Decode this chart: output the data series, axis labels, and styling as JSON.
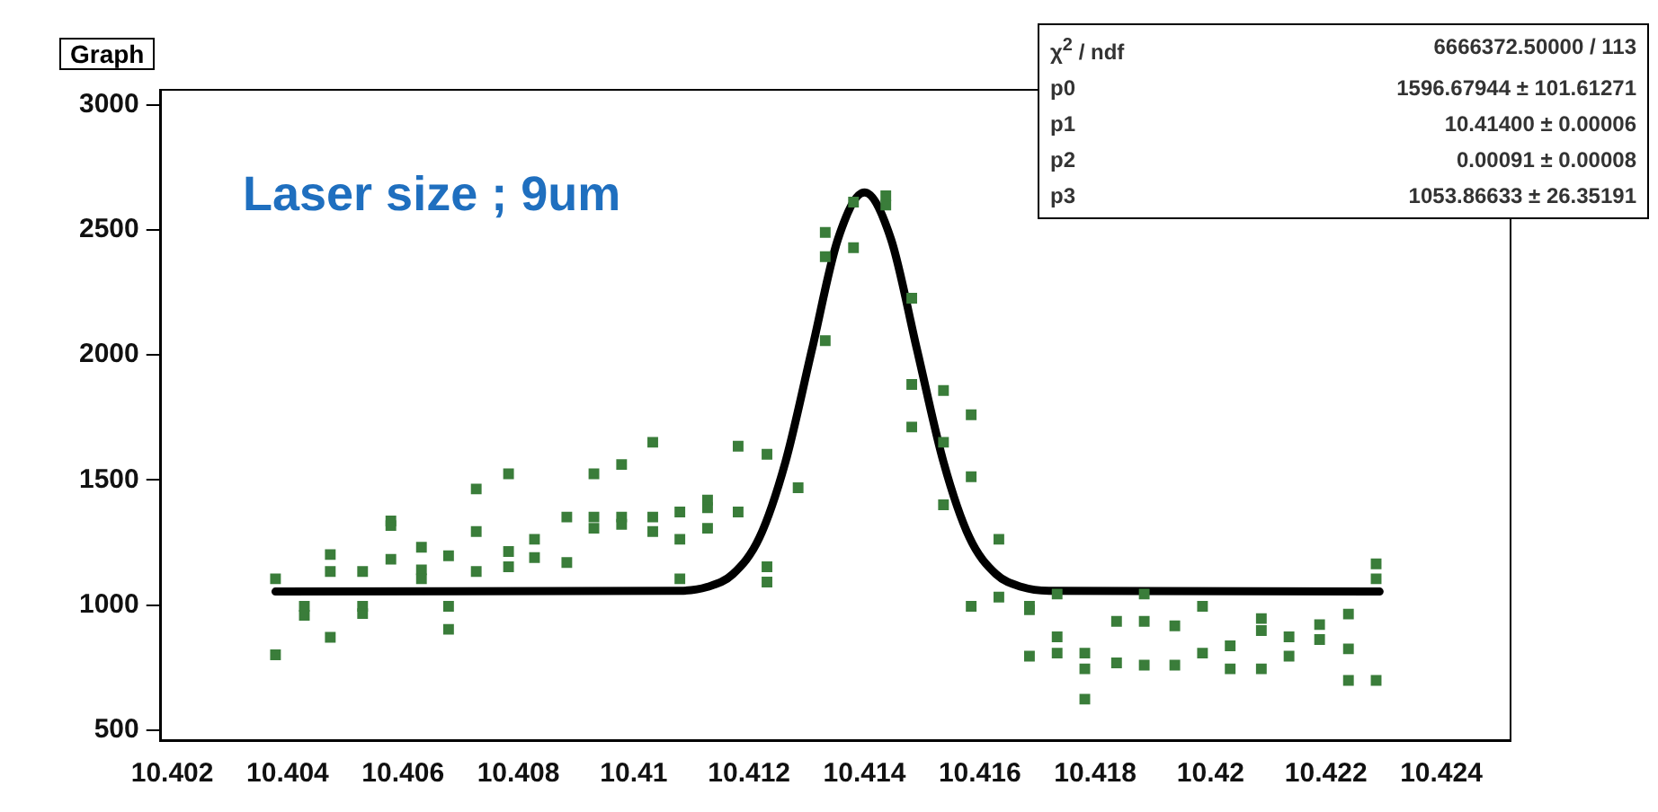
{
  "chart_data": {
    "type": "scatter",
    "title": "Graph",
    "marker": "square",
    "grid": false,
    "legend": false,
    "xlim": [
      10.4018,
      10.4252
    ],
    "ylim": [
      460,
      3060
    ],
    "xticks": [
      10.402,
      10.404,
      10.406,
      10.408,
      10.41,
      10.412,
      10.414,
      10.416,
      10.418,
      10.42,
      10.422,
      10.424
    ],
    "yticks": [
      500,
      1000,
      1500,
      2000,
      2500,
      3000
    ],
    "annotations": [
      "Laser size ; 9um",
      "χ$^{2}$ / ndf",
      "6666372.50000 / 113",
      "p0",
      "1596.67944 ± 101.61271",
      "p1",
      "10.41400 ± 0.00006",
      "p2",
      "0.00091 ± 0.00008",
      "p3",
      "1053.86633 ± 26.35191"
    ],
    "series": [
      {
        "color": "#3a7d3a",
        "x": [
          10.40379,
          10.40379,
          10.40429,
          10.40429,
          10.40474,
          10.40474,
          10.40474,
          10.4053,
          10.4053,
          10.4053,
          10.40579,
          10.40579,
          10.40579,
          10.40632,
          10.40632,
          10.40632,
          10.40679,
          10.40679,
          10.40679,
          10.40727,
          10.40727,
          10.40727,
          10.40783,
          10.40783,
          10.40783,
          10.40828,
          10.40828,
          10.40884,
          10.40884,
          10.40931,
          10.40931,
          10.40931,
          10.40979,
          10.40979,
          10.40979,
          10.41033,
          10.41033,
          10.41033,
          10.4108,
          10.4108,
          10.4108,
          10.41128,
          10.41128,
          10.41128,
          10.41181,
          10.41181,
          10.41231,
          10.41231,
          10.41231,
          10.41285,
          10.41332,
          10.41332,
          10.41332,
          10.41381,
          10.41381,
          10.41437,
          10.41437,
          10.41482,
          10.41482,
          10.41482,
          10.41537,
          10.41537,
          10.41537,
          10.41585,
          10.41585,
          10.41585,
          10.41633,
          10.41633,
          10.41686,
          10.41686,
          10.41686,
          10.41734,
          10.41734,
          10.41734,
          10.41782,
          10.41782,
          10.41782,
          10.41837,
          10.41837,
          10.41885,
          10.41885,
          10.41885,
          10.41938,
          10.41938,
          10.41986,
          10.41986,
          10.42034,
          10.42034,
          10.42088,
          10.42088,
          10.42088,
          10.42136,
          10.42136,
          10.42189,
          10.42189,
          10.42239,
          10.42239,
          10.42239,
          10.42287,
          10.42287,
          10.42287
        ],
        "values": [
          1105,
          801,
          995,
          959,
          1202,
          1134,
          871,
          1134,
          995,
          966,
          1336,
          1318,
          1183,
          1231,
          1141,
          1105,
          1197,
          995,
          903,
          1464,
          1294,
          1134,
          1525,
          1214,
          1153,
          1263,
          1190,
          1352,
          1170,
          1525,
          1352,
          1307,
          1562,
          1352,
          1323,
          1651,
          1352,
          1294,
          1372,
          1263,
          1105,
          1420,
          1389,
          1307,
          1635,
          1372,
          1603,
          1153,
          1092,
          1469,
          2490,
          2393,
          2057,
          2611,
          2429,
          2636,
          2599,
          2227,
          1882,
          1712,
          1858,
          1651,
          1401,
          1761,
          1513,
          995,
          1263,
          1032,
          995,
          981,
          796,
          1044,
          873,
          808,
          808,
          745,
          624,
          935,
          769,
          1044,
          935,
          760,
          917,
          760,
          995,
          808,
          837,
          745,
          946,
          898,
          745,
          873,
          796,
          922,
          862,
          964,
          825,
          699,
          1165,
          1105,
          699
        ]
      },
      {
        "type": "line",
        "marker": "none",
        "color": "#000000",
        "x": [
          10.40379,
          10.4108,
          10.41127,
          10.41172,
          10.41218,
          10.41263,
          10.41309,
          10.41354,
          10.414,
          10.41446,
          10.41491,
          10.41537,
          10.41582,
          10.41628,
          10.41673,
          10.4172,
          10.42293
        ],
        "values": [
          1054,
          1057,
          1072,
          1124,
          1270,
          1572,
          2022,
          2463,
          2650,
          2463,
          2022,
          1572,
          1270,
          1124,
          1072,
          1057,
          1054
        ]
      }
    ]
  }
}
